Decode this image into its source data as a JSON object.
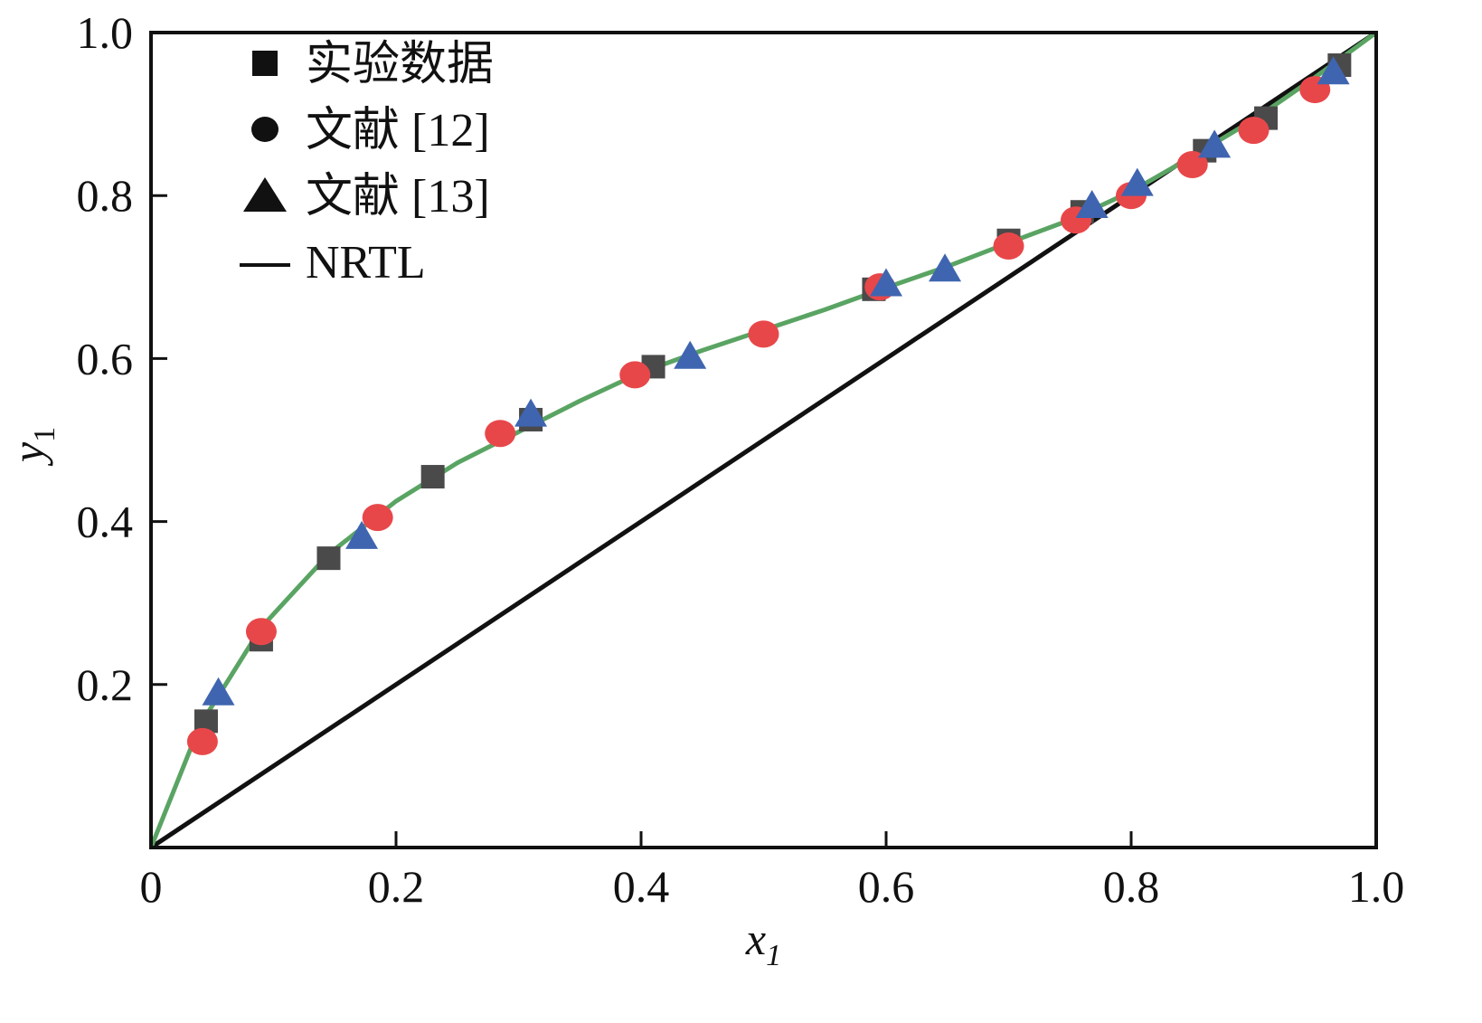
{
  "chart_data": {
    "type": "scatter",
    "xlabel": "x",
    "xlabel_sub": "1",
    "ylabel": "y",
    "ylabel_sub": "1",
    "xlim": [
      0,
      1.0
    ],
    "ylim": [
      0,
      1.0
    ],
    "x_ticks": [
      {
        "value": 0,
        "label": "0"
      },
      {
        "value": 0.2,
        "label": "0.2"
      },
      {
        "value": 0.4,
        "label": "0.4"
      },
      {
        "value": 0.6,
        "label": "0.6"
      },
      {
        "value": 0.8,
        "label": "0.8"
      },
      {
        "value": 1.0,
        "label": "1.0"
      }
    ],
    "y_ticks": [
      {
        "value": 0.2,
        "label": "0.2"
      },
      {
        "value": 0.4,
        "label": "0.4"
      },
      {
        "value": 0.6,
        "label": "0.6"
      },
      {
        "value": 0.8,
        "label": "0.8"
      },
      {
        "value": 1.0,
        "label": "1.0"
      }
    ],
    "grid": false,
    "legend_position": "top-left",
    "series": [
      {
        "name": "实验数据",
        "marker": "square",
        "color": "#4a4a4a",
        "x": [
          0.045,
          0.09,
          0.145,
          0.23,
          0.31,
          0.41,
          0.59,
          0.7,
          0.76,
          0.86,
          0.91,
          0.97
        ],
        "y": [
          0.155,
          0.255,
          0.355,
          0.455,
          0.525,
          0.59,
          0.685,
          0.745,
          0.78,
          0.855,
          0.895,
          0.96
        ]
      },
      {
        "name": "文献 [12]",
        "marker": "circle",
        "color": "#e8474a",
        "x": [
          0.042,
          0.09,
          0.185,
          0.285,
          0.395,
          0.5,
          0.595,
          0.7,
          0.755,
          0.8,
          0.85,
          0.9,
          0.95
        ],
        "y": [
          0.13,
          0.265,
          0.405,
          0.508,
          0.58,
          0.63,
          0.688,
          0.738,
          0.77,
          0.8,
          0.838,
          0.88,
          0.93
        ]
      },
      {
        "name": "文献 [13]",
        "marker": "triangle",
        "color": "#3f65b0",
        "x": [
          0.055,
          0.172,
          0.31,
          0.44,
          0.6,
          0.648,
          0.768,
          0.805,
          0.868,
          0.965
        ],
        "y": [
          0.19,
          0.382,
          0.532,
          0.603,
          0.692,
          0.71,
          0.788,
          0.815,
          0.862,
          0.952
        ]
      },
      {
        "name": "NRTL",
        "type": "line",
        "color": "#5aa463",
        "x": [
          0,
          0.04,
          0.09,
          0.145,
          0.2,
          0.25,
          0.3,
          0.35,
          0.4,
          0.45,
          0.5,
          0.55,
          0.6,
          0.65,
          0.7,
          0.75,
          0.8,
          0.85,
          0.9,
          0.95,
          1.0
        ],
        "y": [
          0,
          0.15,
          0.27,
          0.36,
          0.425,
          0.472,
          0.51,
          0.548,
          0.583,
          0.61,
          0.635,
          0.66,
          0.687,
          0.713,
          0.742,
          0.77,
          0.805,
          0.848,
          0.893,
          0.945,
          1.0
        ]
      }
    ],
    "reference_line": {
      "color": "#111111",
      "x": [
        0,
        1.0
      ],
      "y": [
        0,
        1.0
      ]
    },
    "legend": [
      {
        "label": "实验数据",
        "marker": "square"
      },
      {
        "label": "文献 [12]",
        "marker": "circle"
      },
      {
        "label": "文献 [13]",
        "marker": "triangle"
      },
      {
        "label": "NRTL",
        "marker": "line"
      }
    ]
  }
}
